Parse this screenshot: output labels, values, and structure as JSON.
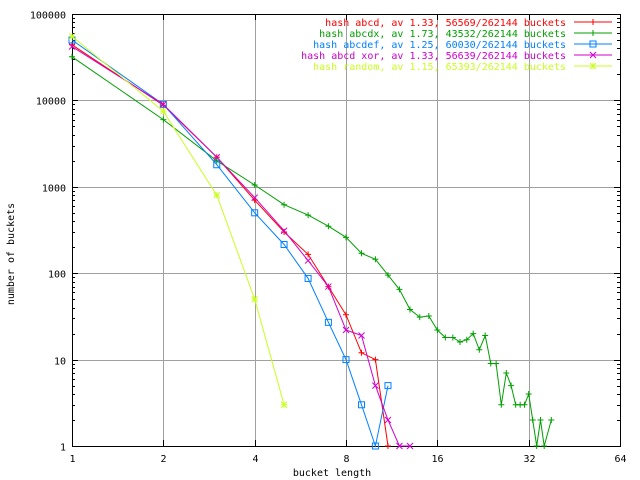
{
  "chart_data": {
    "type": "line",
    "title": "",
    "xlabel": "bucket length",
    "ylabel": "number of buckets",
    "x_scale": "log2",
    "y_scale": "log10",
    "xlim": [
      1,
      64
    ],
    "ylim": [
      1,
      100000
    ],
    "grid": true,
    "legend_position": "top-right",
    "x_ticks": [
      "1",
      "2",
      "4",
      "8",
      "16",
      "32",
      "64"
    ],
    "y_ticks": [
      "1",
      "10",
      "100",
      "1000",
      "10000",
      "100000"
    ],
    "series": [
      {
        "name": "hash abcd, av 1.33, 56569/262144 buckets",
        "color": "#ff0000",
        "marker": "plus",
        "x": [
          1,
          2,
          3,
          4,
          5,
          6,
          7,
          8,
          9,
          10,
          11
        ],
        "y": [
          44000,
          8800,
          2200,
          700,
          300,
          165,
          70,
          33,
          12,
          10,
          1
        ]
      },
      {
        "name": "hash abcdx, av 1.73, 43532/262144 buckets",
        "color": "#00a000",
        "marker": "plus",
        "x": [
          1,
          2,
          3,
          4,
          5,
          6,
          7,
          8,
          9,
          10,
          11,
          12,
          13,
          14,
          15,
          16,
          17,
          18,
          19,
          20,
          21,
          22,
          23,
          24,
          25,
          26,
          27,
          28,
          29,
          30,
          31,
          32,
          33,
          34,
          35,
          36,
          38
        ],
        "y": [
          32000,
          6000,
          2000,
          1050,
          620,
          470,
          350,
          260,
          170,
          145,
          95,
          65,
          38,
          31,
          32,
          22,
          18,
          18,
          16,
          17,
          20,
          13,
          19,
          9,
          9,
          3,
          7,
          5,
          3,
          3,
          3,
          4,
          2,
          1,
          2,
          1,
          2
        ]
      },
      {
        "name": "hash abcdef, av 1.25, 60030/262144 buckets",
        "color": "#0080ff",
        "marker": "square",
        "x": [
          1,
          2,
          3,
          4,
          5,
          6,
          7,
          8,
          9,
          10,
          11
        ],
        "y": [
          50000,
          9000,
          1800,
          500,
          215,
          87,
          27,
          10,
          3,
          1,
          5
        ]
      },
      {
        "name": "hash abcd xor, av 1.33, 56639/262144 buckets",
        "color": "#d000d0",
        "marker": "cross",
        "x": [
          1,
          2,
          3,
          4,
          5,
          6,
          7,
          8,
          9,
          10,
          11,
          12,
          13
        ],
        "y": [
          42000,
          9000,
          2200,
          750,
          310,
          140,
          70,
          22,
          19,
          5,
          2,
          1,
          1
        ]
      },
      {
        "name": "hash random, av 1.15, 65393/262144 buckets",
        "color": "#c8ff20",
        "marker": "star",
        "x": [
          1,
          2,
          3,
          4,
          5
        ],
        "y": [
          55000,
          7500,
          800,
          50,
          3
        ]
      }
    ]
  }
}
